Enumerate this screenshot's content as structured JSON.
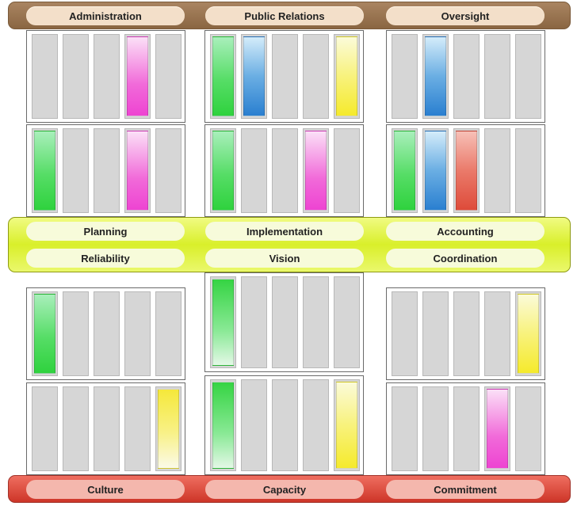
{
  "top_band": [
    "Administration",
    "Public Relations",
    "Oversight"
  ],
  "middle_band": {
    "row1": [
      "Planning",
      "Implementation",
      "Accounting"
    ],
    "row2": [
      "Reliability",
      "Vision",
      "Coordination"
    ]
  },
  "bottom_band": [
    "Culture",
    "Capacity",
    "Commitment"
  ],
  "colors": {
    "magenta": "#ee44d2",
    "blue": "#2a7fd0",
    "green": "#2fd23e",
    "yellow": "#f5ea2c",
    "red": "#de4b3a",
    "empty_slot": "#d6d6d6"
  },
  "panels": [
    {
      "position": "upper-row1-left",
      "slots": [
        "empty",
        "empty",
        "empty",
        "magenta",
        "empty"
      ]
    },
    {
      "position": "upper-row1-center",
      "slots": [
        "green",
        "blue",
        "empty",
        "empty",
        "yellow"
      ]
    },
    {
      "position": "upper-row1-right",
      "slots": [
        "empty",
        "blue",
        "empty",
        "empty",
        "empty"
      ]
    },
    {
      "position": "upper-row2-left",
      "slots": [
        "green",
        "empty",
        "empty",
        "magenta",
        "empty"
      ]
    },
    {
      "position": "upper-row2-center",
      "slots": [
        "green",
        "empty",
        "empty",
        "magenta",
        "empty"
      ]
    },
    {
      "position": "upper-row2-right",
      "slots": [
        "green",
        "blue",
        "red",
        "empty",
        "empty"
      ]
    },
    {
      "position": "lower-row1-left",
      "slots": [
        "green",
        "empty",
        "empty",
        "empty",
        "empty"
      ]
    },
    {
      "position": "lower-row1-center",
      "slots": [
        "green-up",
        "empty",
        "empty",
        "empty",
        "empty"
      ]
    },
    {
      "position": "lower-row1-right",
      "slots": [
        "empty",
        "empty",
        "empty",
        "empty",
        "yellow"
      ]
    },
    {
      "position": "lower-row2-left",
      "slots": [
        "empty",
        "empty",
        "empty",
        "empty",
        "yellow-up"
      ]
    },
    {
      "position": "lower-row2-center",
      "slots": [
        "green-up",
        "empty",
        "empty",
        "empty",
        "yellow"
      ]
    },
    {
      "position": "lower-row2-right",
      "slots": [
        "empty",
        "empty",
        "empty",
        "magenta",
        "empty"
      ]
    }
  ]
}
